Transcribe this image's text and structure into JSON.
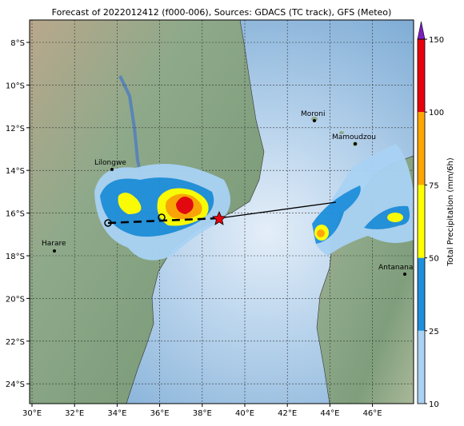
{
  "title": "Forecast of 2022012412 (f000-006), Sources: GDACS (TC track), GFS (Meteo)",
  "map": {
    "lon_labels": [
      "30°E",
      "32°E",
      "34°E",
      "36°E",
      "38°E",
      "40°E",
      "42°E",
      "44°E",
      "46°E"
    ],
    "lat_labels": [
      "8°S",
      "10°S",
      "12°S",
      "14°S",
      "16°S",
      "18°S",
      "20°S",
      "22°S",
      "24°S"
    ],
    "cities": [
      {
        "name": "Lilongwe"
      },
      {
        "name": "Harare"
      },
      {
        "name": "Moroni"
      },
      {
        "name": "Mamoudzou"
      },
      {
        "name": "Antananarivo"
      }
    ]
  },
  "colorbar": {
    "label": "Total Precipitation (mm/6h)",
    "ticks": [
      10,
      25,
      50,
      75,
      100,
      150
    ],
    "colors": [
      "#a9d2f4",
      "#1e8fdc",
      "#ffff00",
      "#ffa500",
      "#e8000b"
    ],
    "extend_color": "#7a1fc0"
  }
}
